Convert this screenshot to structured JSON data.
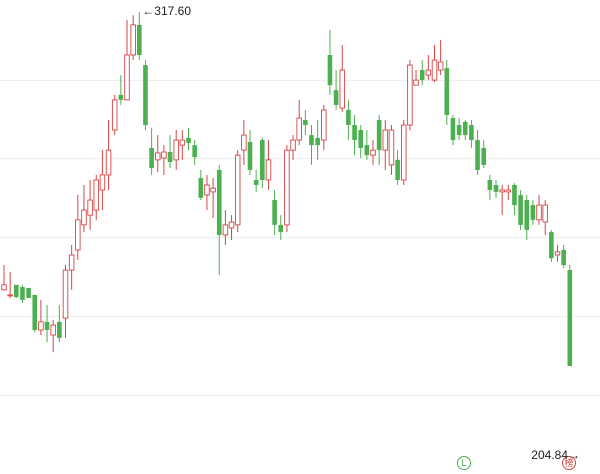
{
  "chart_data": {
    "type": "candlestick",
    "up_color": "#d64545",
    "down_color": "#4caf50",
    "ylim": [
      181.28,
      321.42
    ],
    "open": [
      229.1,
      227.5,
      230.7,
      230.0,
      229.7,
      227.5,
      216.3,
      218.9,
      214.7,
      218.9,
      220.1,
      235.4,
      241.8,
      249.8,
      252.9,
      254.5,
      260.9,
      265.7,
      280.0,
      291.2,
      289.6,
      303.9,
      313.5,
      300.7,
      274.3,
      270.5,
      271.1,
      273.0,
      270.5,
      275.2,
      277.5,
      275.2,
      264.7,
      259.3,
      260.3,
      267.3,
      246.6,
      248.8,
      249.8,
      273.6,
      276.2,
      264.1,
      276.8,
      264.1,
      257.7,
      249.8,
      249.8,
      273.6,
      276.8,
      283.2,
      278.4,
      277.5,
      276.8,
      303.9,
      292.7,
      287.0,
      286.4,
      281.6,
      280.0,
      275.2,
      272.0,
      283.2,
      273.6,
      268.9,
      270.5,
      264.1,
      281.6,
      294.3,
      299.1,
      297.5,
      295.9,
      299.1,
      299.7,
      283.8,
      281.6,
      282.6,
      281.6,
      276.8,
      274.3,
      264.1,
      262.5,
      260.3,
      260.3,
      262.5,
      259.3,
      257.7,
      256.1,
      251.4,
      250.7,
      247.5,
      240.2,
      241.8,
      235.4
    ],
    "close": [
      230.7,
      227.5,
      226.8,
      225.9,
      226.5,
      216.3,
      218.9,
      216.3,
      217.9,
      213.8,
      235.4,
      240.2,
      251.4,
      254.5,
      257.7,
      264.1,
      265.7,
      273.6,
      289.6,
      289.6,
      303.9,
      313.5,
      303.9,
      281.6,
      267.9,
      272.7,
      273.0,
      269.8,
      276.8,
      276.8,
      275.9,
      271.4,
      258.4,
      262.5,
      261.5,
      246.6,
      249.8,
      250.7,
      272.0,
      278.4,
      267.3,
      262.5,
      264.1,
      270.5,
      249.8,
      247.5,
      273.6,
      276.8,
      283.8,
      281.6,
      275.2,
      275.2,
      286.4,
      294.3,
      288.0,
      299.1,
      281.6,
      276.8,
      274.3,
      272.0,
      273.6,
      273.6,
      280.0,
      280.0,
      264.1,
      281.6,
      300.7,
      295.9,
      295.9,
      299.1,
      302.3,
      301.7,
      284.8,
      276.8,
      278.4,
      278.4,
      276.8,
      267.3,
      268.9,
      260.9,
      260.3,
      260.9,
      260.9,
      256.1,
      249.8,
      248.2,
      251.4,
      256.1,
      256.1,
      239.2,
      241.2,
      237.0,
      204.84
    ],
    "high": [
      237.0,
      234.8,
      230.0,
      230.7,
      228.8,
      227.5,
      225.9,
      224.3,
      219.5,
      224.3,
      237.0,
      243.4,
      259.3,
      262.5,
      264.1,
      265.7,
      273.6,
      283.2,
      291.2,
      297.5,
      315.1,
      316.6,
      317.6,
      302.3,
      280.7,
      278.4,
      275.2,
      278.4,
      280.0,
      280.0,
      280.7,
      276.8,
      267.3,
      265.7,
      264.7,
      268.9,
      254.5,
      252.9,
      273.6,
      283.2,
      280.0,
      267.3,
      277.5,
      276.8,
      260.9,
      252.9,
      275.2,
      278.4,
      289.6,
      286.4,
      281.6,
      283.2,
      288.0,
      311.9,
      299.1,
      307.1,
      289.6,
      284.8,
      281.6,
      280.0,
      276.8,
      284.8,
      283.2,
      281.6,
      273.6,
      283.2,
      302.3,
      299.1,
      302.3,
      303.9,
      307.1,
      308.7,
      302.3,
      284.8,
      283.8,
      283.2,
      283.2,
      280.0,
      276.8,
      265.7,
      264.1,
      262.5,
      262.5,
      263.1,
      260.9,
      259.3,
      257.7,
      259.3,
      257.7,
      248.2,
      243.4,
      243.4,
      237.0
    ],
    "low": [
      229.1,
      226.5,
      226.5,
      224.9,
      226.5,
      215.7,
      214.7,
      212.5,
      209.3,
      212.5,
      213.8,
      229.1,
      238.6,
      247.5,
      248.2,
      251.4,
      254.5,
      260.9,
      278.4,
      288.0,
      289.6,
      302.3,
      302.3,
      280.0,
      265.7,
      266.6,
      265.7,
      267.9,
      267.3,
      270.5,
      273.6,
      268.9,
      257.7,
      254.5,
      252.0,
      233.8,
      243.4,
      245.0,
      247.5,
      268.9,
      265.7,
      260.3,
      261.5,
      260.9,
      246.6,
      245.0,
      247.5,
      270.5,
      275.2,
      278.4,
      268.9,
      270.5,
      273.6,
      291.2,
      286.4,
      285.8,
      276.8,
      272.0,
      271.1,
      270.5,
      268.9,
      268.9,
      267.3,
      265.7,
      262.5,
      262.5,
      280.0,
      294.3,
      294.3,
      295.9,
      295.3,
      297.5,
      281.6,
      275.2,
      276.8,
      276.8,
      274.3,
      265.7,
      267.9,
      257.7,
      258.4,
      252.9,
      257.7,
      252.9,
      248.2,
      245.0,
      249.8,
      249.8,
      246.6,
      238.0,
      238.0,
      236.1,
      204.84
    ],
    "annotations": [
      {
        "label": "←317.60",
        "value": 317.6
      },
      {
        "label": "204.84→",
        "value": 204.84
      }
    ],
    "badges": [
      "L",
      "榜"
    ]
  }
}
